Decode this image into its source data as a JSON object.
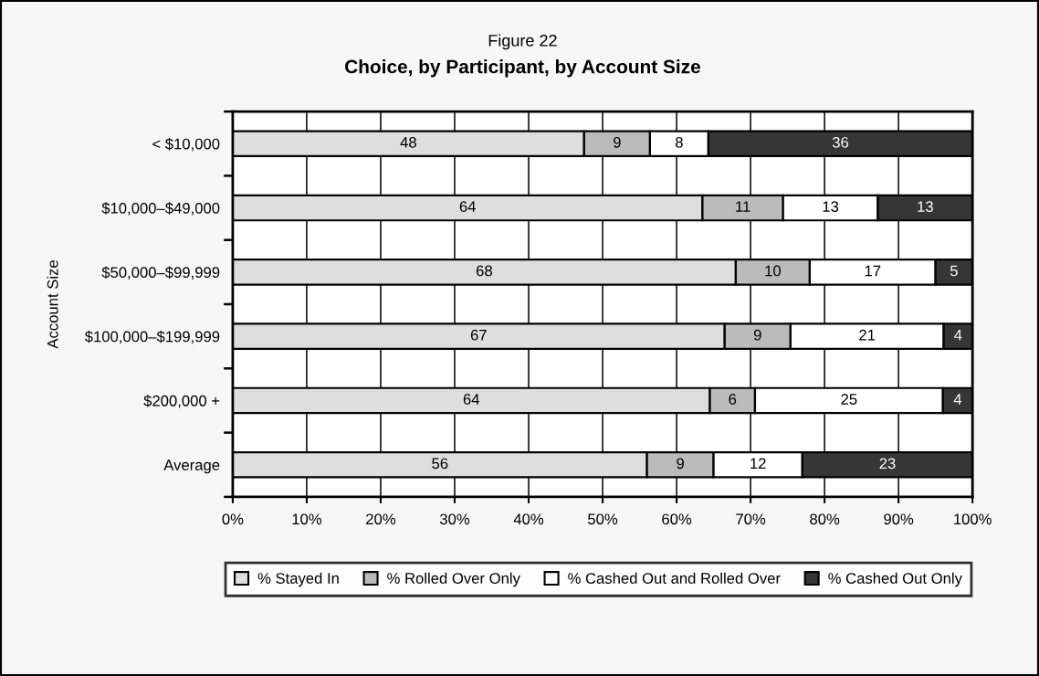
{
  "chart_data": {
    "type": "bar",
    "orientation": "horizontal",
    "stacked": true,
    "title": "Figure 22",
    "subtitle": "Choice, by Participant, by Account Size",
    "ylabel": "Account Size",
    "categories": [
      "< $10,000",
      "$10,000–$49,000",
      "$50,000–$99,999",
      "$100,000–$199,999",
      "$200,000 +",
      "Average"
    ],
    "series": [
      {
        "name": "% Stayed In",
        "color": "#dedede",
        "values": [
          47.5,
          63.5,
          68,
          66.5,
          64.5,
          56
        ],
        "value_labels": [
          "48",
          "64",
          "68",
          "67",
          "64",
          "56"
        ]
      },
      {
        "name": "% Rolled Over Only",
        "color": "#bbbbbb",
        "values": [
          8.9,
          10.9,
          10,
          8.9,
          6.1,
          9
        ],
        "value_labels": [
          "9",
          "11",
          "10",
          "9",
          "6",
          "9"
        ]
      },
      {
        "name": "% Cashed Out and Rolled Over",
        "color": "#ffffff",
        "values": [
          7.9,
          12.8,
          17,
          20.7,
          25.4,
          12
        ],
        "value_labels": [
          "8",
          "13",
          "17",
          "21",
          "25",
          "12"
        ]
      },
      {
        "name": "% Cashed Out Only",
        "color": "#363636",
        "values": [
          35.7,
          12.8,
          5,
          3.9,
          4.0,
          23
        ],
        "value_labels": [
          "36",
          "13",
          "5",
          "4",
          "4",
          "23"
        ]
      }
    ],
    "xlim": [
      0,
      100
    ],
    "xticks": [
      {
        "value": 0,
        "label": "0%"
      },
      {
        "value": 10,
        "label": "10%"
      },
      {
        "value": 20,
        "label": "20%"
      },
      {
        "value": 30,
        "label": "30%"
      },
      {
        "value": 40,
        "label": "40%"
      },
      {
        "value": 50,
        "label": "50%"
      },
      {
        "value": 60,
        "label": "60%"
      },
      {
        "value": 70,
        "label": "70%"
      },
      {
        "value": 80,
        "label": "80%"
      },
      {
        "value": 90,
        "label": "90%"
      },
      {
        "value": 100,
        "label": "100%"
      }
    ],
    "grid": "x",
    "legend": "bottom"
  }
}
